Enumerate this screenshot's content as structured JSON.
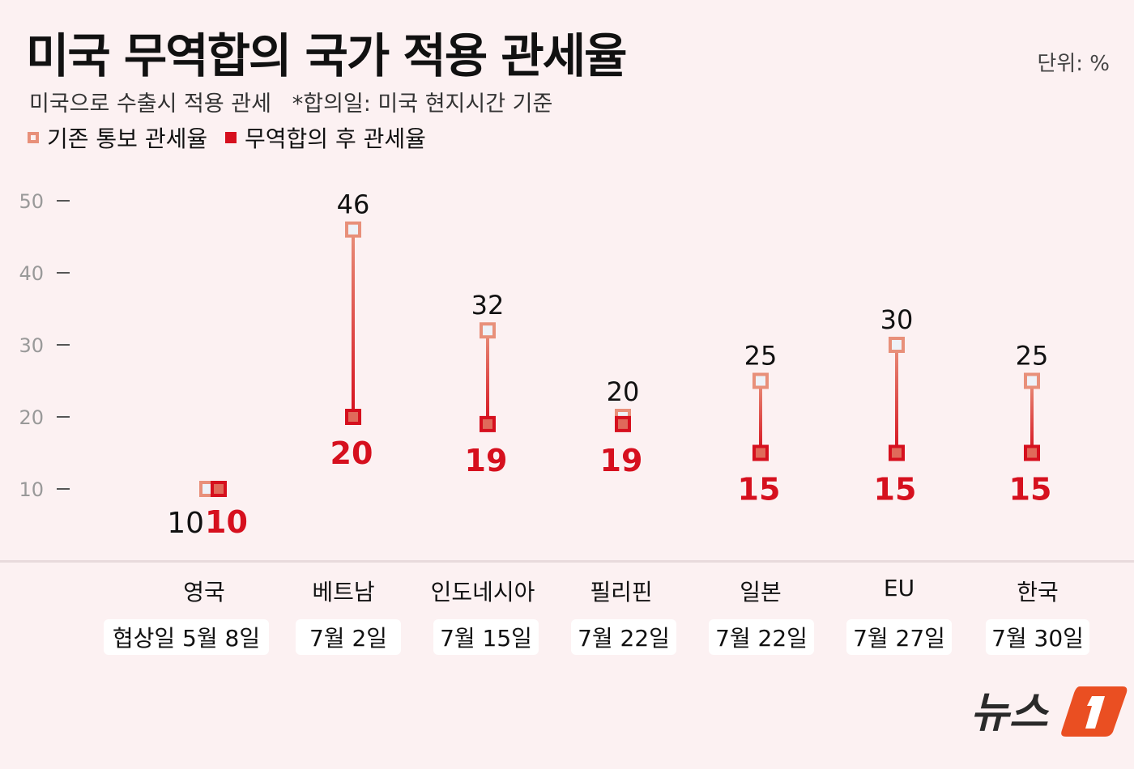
{
  "title": "미국 무역합의 국가 적용 관세율",
  "unit": "단위: %",
  "subtitle": "미국으로 수출시 적용 관세   *합의일: 미국 현지시간 기준",
  "logo": "뉴스1",
  "colors": {
    "before": "#e8907a",
    "after": "#d6101e"
  },
  "chart_data": {
    "type": "dumbbell",
    "ylim": [
      0,
      50
    ],
    "yticks": [
      10,
      20,
      30,
      40,
      50
    ],
    "legend": [
      {
        "name": "기존 통보 관세율",
        "marker": "hollow-square"
      },
      {
        "name": "무역합의 후 관세율",
        "marker": "filled-square"
      }
    ],
    "categories": [
      "영국",
      "베트남",
      "인도네시아",
      "필리핀",
      "일본",
      "EU",
      "한국"
    ],
    "dates": [
      "협상일 5월 8일",
      "7월 2일",
      "7월 15일",
      "7월 22일",
      "7월 22일",
      "7월 27일",
      "7월 30일"
    ],
    "series": [
      {
        "name": "기존 통보 관세율",
        "values": [
          10,
          46,
          32,
          20,
          25,
          30,
          25
        ]
      },
      {
        "name": "무역합의 후 관세율",
        "values": [
          10,
          20,
          19,
          19,
          15,
          15,
          15
        ]
      }
    ]
  }
}
